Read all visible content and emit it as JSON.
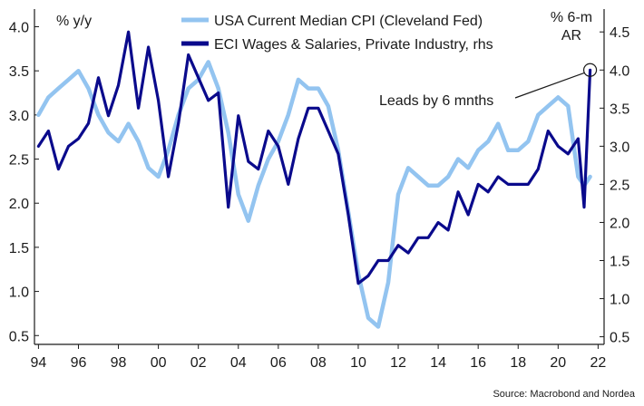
{
  "chart_data": {
    "type": "line",
    "left_axis": {
      "unit_label": "% y/y",
      "ylim": [
        0.4,
        4.2
      ],
      "ticks": [
        "0.5",
        "1.0",
        "1.5",
        "2.0",
        "2.5",
        "3.0",
        "3.5",
        "4.0"
      ]
    },
    "right_axis": {
      "unit_label": "% 6-m AR",
      "ylim": [
        0.4,
        4.8
      ],
      "ticks": [
        "0.5",
        "1.0",
        "1.5",
        "2.0",
        "2.5",
        "3.0",
        "3.5",
        "4.0",
        "4.5"
      ]
    },
    "x_axis": {
      "xlim": [
        1993.8,
        2022.3
      ],
      "tick_labels": [
        "94",
        "96",
        "98",
        "00",
        "02",
        "04",
        "06",
        "08",
        "10",
        "12",
        "14",
        "16",
        "18",
        "20",
        "22"
      ]
    },
    "grid": false,
    "legend_position": "top",
    "annotation": {
      "text": "Leads by 6 mnths",
      "marker_at": [
        2021.6,
        4.0
      ]
    },
    "source": "Source: Macrobond and Nordea",
    "series": [
      {
        "name": "USA Current Median CPI (Cleveland Fed)",
        "axis": "left",
        "color": "#93c4f0",
        "x": [
          1994.0,
          1994.5,
          1995.0,
          1995.5,
          1996.0,
          1996.5,
          1997.0,
          1997.5,
          1998.0,
          1998.5,
          1999.0,
          1999.5,
          2000.0,
          2000.5,
          2001.0,
          2001.5,
          2002.0,
          2002.5,
          2003.0,
          2003.5,
          2004.0,
          2004.5,
          2005.0,
          2005.5,
          2006.0,
          2006.5,
          2007.0,
          2007.5,
          2008.0,
          2008.5,
          2009.0,
          2009.5,
          2010.0,
          2010.5,
          2011.0,
          2011.5,
          2012.0,
          2012.5,
          2013.0,
          2013.5,
          2014.0,
          2014.5,
          2015.0,
          2015.5,
          2016.0,
          2016.5,
          2017.0,
          2017.5,
          2018.0,
          2018.5,
          2019.0,
          2019.5,
          2020.0,
          2020.5,
          2021.0,
          2021.3,
          2021.6
        ],
        "y": [
          3.0,
          3.2,
          3.3,
          3.4,
          3.5,
          3.3,
          3.0,
          2.8,
          2.7,
          2.9,
          2.7,
          2.4,
          2.3,
          2.6,
          3.0,
          3.3,
          3.4,
          3.6,
          3.3,
          2.8,
          2.1,
          1.8,
          2.2,
          2.5,
          2.7,
          3.0,
          3.4,
          3.3,
          3.3,
          3.1,
          2.6,
          1.9,
          1.2,
          0.7,
          0.6,
          1.1,
          2.1,
          2.4,
          2.3,
          2.2,
          2.2,
          2.3,
          2.5,
          2.4,
          2.6,
          2.7,
          2.9,
          2.6,
          2.6,
          2.7,
          3.0,
          3.1,
          3.2,
          3.1,
          2.3,
          2.2,
          2.3
        ]
      },
      {
        "name": "ECI Wages & Salaries, Private Industry, rhs",
        "axis": "right",
        "color": "#0a0a8c",
        "x": [
          1994.0,
          1994.5,
          1995.0,
          1995.5,
          1996.0,
          1996.5,
          1997.0,
          1997.5,
          1998.0,
          1998.5,
          1999.0,
          1999.5,
          2000.0,
          2000.5,
          2001.0,
          2001.5,
          2002.0,
          2002.5,
          2003.0,
          2003.5,
          2004.0,
          2004.5,
          2005.0,
          2005.5,
          2006.0,
          2006.5,
          2007.0,
          2007.5,
          2008.0,
          2008.5,
          2009.0,
          2009.5,
          2010.0,
          2010.5,
          2011.0,
          2011.5,
          2012.0,
          2012.5,
          2013.0,
          2013.5,
          2014.0,
          2014.5,
          2015.0,
          2015.5,
          2016.0,
          2016.5,
          2017.0,
          2017.5,
          2018.0,
          2018.5,
          2019.0,
          2019.5,
          2020.0,
          2020.5,
          2021.0,
          2021.3,
          2021.6
        ],
        "y": [
          3.0,
          3.2,
          2.7,
          3.0,
          3.1,
          3.3,
          3.9,
          3.4,
          3.8,
          4.5,
          3.5,
          4.3,
          3.6,
          2.6,
          3.3,
          4.2,
          3.9,
          3.6,
          3.7,
          2.2,
          3.4,
          2.8,
          2.7,
          3.2,
          3.0,
          2.5,
          3.1,
          3.5,
          3.5,
          3.2,
          2.9,
          2.1,
          1.2,
          1.3,
          1.5,
          1.5,
          1.7,
          1.6,
          1.8,
          1.8,
          2.0,
          1.9,
          2.4,
          2.1,
          2.5,
          2.4,
          2.6,
          2.5,
          2.5,
          2.5,
          2.7,
          3.2,
          3.0,
          2.9,
          3.1,
          2.2,
          4.0
        ]
      }
    ]
  }
}
